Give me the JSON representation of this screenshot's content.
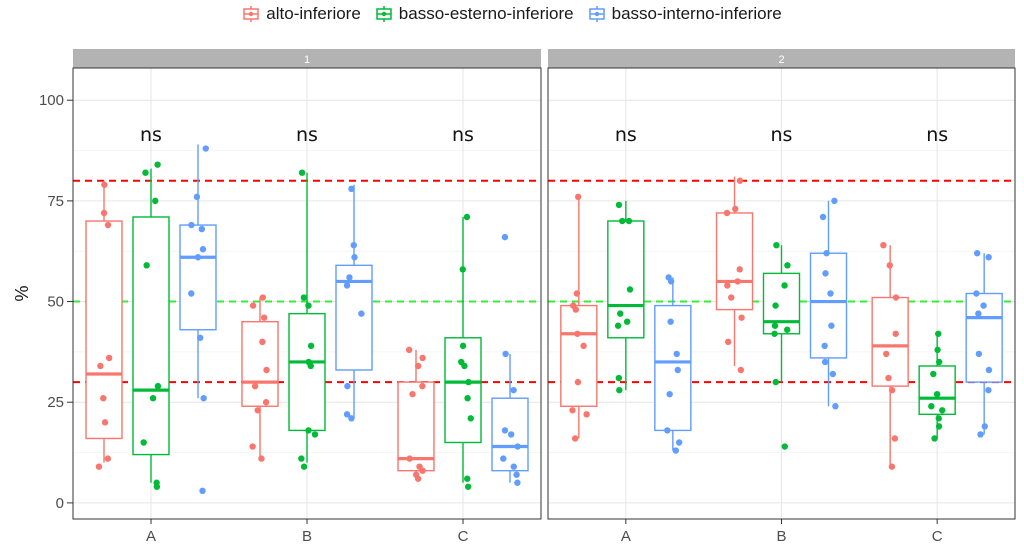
{
  "chart_data": {
    "type": "box",
    "ylabel": "%",
    "y_ticks": [
      0,
      25,
      50,
      75,
      100
    ],
    "ylim": [
      -4,
      108
    ],
    "categories": [
      "A",
      "B",
      "C"
    ],
    "legend_position": "top",
    "series": [
      {
        "name": "alto-inferiore",
        "color": "#F8766D"
      },
      {
        "name": "basso-esterno-inferiore",
        "color": "#00BA38"
      },
      {
        "name": "basso-interno-inferiore",
        "color": "#619CFF"
      }
    ],
    "reference_lines": [
      {
        "y": 80,
        "color": "#ff0000",
        "style": "dashed"
      },
      {
        "y": 50,
        "color": "#33ee33",
        "style": "dashed"
      },
      {
        "y": 30,
        "color": "#ff0000",
        "style": "dashed"
      }
    ],
    "facets": [
      {
        "label": "1",
        "groups": [
          {
            "category": "A",
            "annotation": "ns",
            "boxes": [
              {
                "series": 0,
                "min": 10,
                "q1": 16,
                "median": 32,
                "q3": 70,
                "max": 80,
                "points": [
                  9,
                  11,
                  20,
                  26,
                  34,
                  36,
                  69,
                  72,
                  79
                ]
              },
              {
                "series": 1,
                "min": 5,
                "q1": 12,
                "median": 28,
                "q3": 71,
                "max": 83,
                "points": [
                  4,
                  5,
                  15,
                  26,
                  29,
                  59,
                  75,
                  82,
                  84
                ]
              },
              {
                "series": 2,
                "min": 26,
                "q1": 43,
                "median": 61,
                "q3": 69,
                "max": 89,
                "points": [
                  3,
                  26,
                  41,
                  52,
                  61,
                  63,
                  68,
                  69,
                  76,
                  88
                ]
              }
            ]
          },
          {
            "category": "B",
            "annotation": "ns",
            "boxes": [
              {
                "series": 0,
                "min": 11,
                "q1": 24,
                "median": 30,
                "q3": 45,
                "max": 51,
                "points": [
                  11,
                  14,
                  23,
                  25,
                  29,
                  33,
                  40,
                  46,
                  49,
                  51
                ]
              },
              {
                "series": 1,
                "min": 10,
                "q1": 18,
                "median": 35,
                "q3": 47,
                "max": 82,
                "points": [
                  9,
                  11,
                  17,
                  18,
                  34,
                  35,
                  39,
                  49,
                  51,
                  82
                ]
              },
              {
                "series": 2,
                "min": 21,
                "q1": 33,
                "median": 55,
                "q3": 59,
                "max": 79,
                "points": [
                  21,
                  22,
                  29,
                  47,
                  54,
                  56,
                  61,
                  64,
                  78
                ]
              }
            ]
          },
          {
            "category": "C",
            "annotation": "ns",
            "boxes": [
              {
                "series": 0,
                "min": 6,
                "q1": 8,
                "median": 11,
                "q3": 30,
                "max": 38,
                "points": [
                  6,
                  7,
                  8,
                  9,
                  11,
                  27,
                  29,
                  34,
                  36,
                  38
                ]
              },
              {
                "series": 1,
                "min": 5,
                "q1": 15,
                "median": 30,
                "q3": 41,
                "max": 71,
                "points": [
                  4,
                  6,
                  21,
                  26,
                  30,
                  34,
                  35,
                  39,
                  58,
                  71
                ]
              },
              {
                "series": 2,
                "min": 5,
                "q1": 8,
                "median": 14,
                "q3": 26,
                "max": 37,
                "points": [
                  5,
                  7,
                  9,
                  11,
                  14,
                  17,
                  18,
                  28,
                  37,
                  66
                ]
              }
            ]
          }
        ]
      },
      {
        "label": "2",
        "groups": [
          {
            "category": "A",
            "annotation": "ns",
            "boxes": [
              {
                "series": 0,
                "min": 16,
                "q1": 24,
                "median": 42,
                "q3": 49,
                "max": 76,
                "points": [
                  16,
                  22,
                  23,
                  30,
                  39,
                  42,
                  48,
                  49,
                  52,
                  76
                ]
              },
              {
                "series": 1,
                "min": 28,
                "q1": 41,
                "median": 49,
                "q3": 70,
                "max": 75,
                "points": [
                  28,
                  31,
                  44,
                  45,
                  47,
                  53,
                  70,
                  70,
                  74
                ]
              },
              {
                "series": 2,
                "min": 13,
                "q1": 18,
                "median": 35,
                "q3": 49,
                "max": 56,
                "points": [
                  13,
                  15,
                  18,
                  27,
                  33,
                  37,
                  45,
                  55,
                  56
                ]
              }
            ]
          },
          {
            "category": "B",
            "annotation": "ns",
            "boxes": [
              {
                "series": 0,
                "min": 34,
                "q1": 48,
                "median": 55,
                "q3": 72,
                "max": 81,
                "points": [
                  33,
                  40,
                  46,
                  51,
                  54,
                  55,
                  58,
                  72,
                  73,
                  80
                ]
              },
              {
                "series": 1,
                "min": 30,
                "q1": 42,
                "median": 45,
                "q3": 57,
                "max": 64,
                "points": [
                  14,
                  30,
                  42,
                  43,
                  44,
                  49,
                  54,
                  59,
                  64
                ]
              },
              {
                "series": 2,
                "min": 24,
                "q1": 36,
                "median": 50,
                "q3": 62,
                "max": 75,
                "points": [
                  24,
                  32,
                  35,
                  39,
                  44,
                  52,
                  57,
                  62,
                  71,
                  75
                ]
              }
            ]
          },
          {
            "category": "C",
            "annotation": "ns",
            "boxes": [
              {
                "series": 0,
                "min": 9,
                "q1": 29,
                "median": 39,
                "q3": 51,
                "max": 64,
                "points": [
                  9,
                  16,
                  28,
                  31,
                  37,
                  42,
                  51,
                  59,
                  64
                ]
              },
              {
                "series": 1,
                "min": 16,
                "q1": 22,
                "median": 26,
                "q3": 34,
                "max": 42,
                "points": [
                  16,
                  19,
                  21,
                  23,
                  24,
                  27,
                  32,
                  35,
                  38,
                  42
                ]
              },
              {
                "series": 2,
                "min": 17,
                "q1": 30,
                "median": 46,
                "q3": 52,
                "max": 62,
                "points": [
                  17,
                  19,
                  28,
                  33,
                  37,
                  47,
                  49,
                  52,
                  61,
                  62
                ]
              }
            ]
          }
        ]
      }
    ]
  }
}
